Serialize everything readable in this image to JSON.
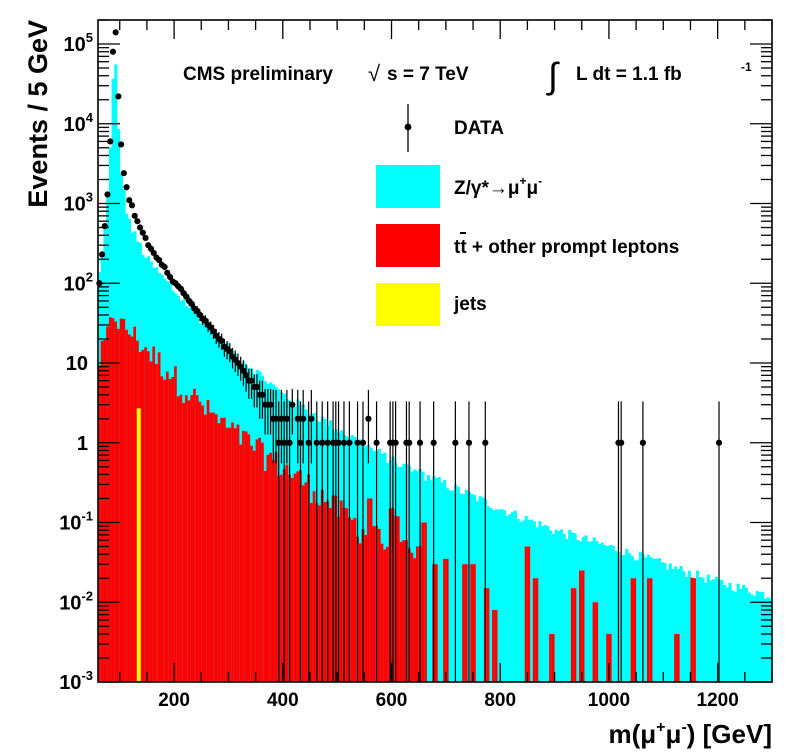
{
  "chart_data": {
    "type": "histogram",
    "title": "CMS preliminary",
    "energy_label": "s = 7 TeV",
    "energy_prefix": "√",
    "lumi_label": "L dt = 1.1 fb",
    "lumi_integral": "∫",
    "lumi_exponent": "-1",
    "xlabel_prefix": "m(μ",
    "xlabel_plus": "+",
    "xlabel_mid": "μ",
    "xlabel_minus": "-",
    "xlabel_suffix": ") [GeV]",
    "ylabel": "Events / 5 GeV",
    "log_y": true,
    "bin_width": 5,
    "xlim": [
      60,
      1300
    ],
    "ylim": [
      0.001,
      200000
    ],
    "x_ticks": [
      200,
      400,
      600,
      800,
      1000,
      1200
    ],
    "x_tick_labels": [
      "200",
      "400",
      "600",
      "800",
      "1000",
      "1200"
    ],
    "y_ticks": [
      {
        "value": 0.001,
        "base": "10",
        "exp": "-3"
      },
      {
        "value": 0.01,
        "base": "10",
        "exp": "-2"
      },
      {
        "value": 0.1,
        "base": "10",
        "exp": "-1"
      },
      {
        "value": 1,
        "base": "1",
        "exp": ""
      },
      {
        "value": 10,
        "base": "10",
        "exp": ""
      },
      {
        "value": 100,
        "base": "10",
        "exp": "2"
      },
      {
        "value": 1000,
        "base": "10",
        "exp": "3"
      },
      {
        "value": 10000,
        "base": "10",
        "exp": "4"
      },
      {
        "value": 100000,
        "base": "10",
        "exp": "5"
      }
    ],
    "legend": [
      {
        "kind": "marker",
        "label": "DATA"
      },
      {
        "kind": "fill",
        "label_parts": [
          "Z/γ*→μ",
          "+",
          "μ",
          "-"
        ],
        "color": "#00ffff"
      },
      {
        "kind": "fill",
        "label_parts": [
          "t",
          "t",
          " + other prompt leptons"
        ],
        "color": "#ff0000"
      },
      {
        "kind": "fill",
        "label": "jets",
        "color": "#ffff00"
      }
    ],
    "series": [
      {
        "name": "Z/gamma*",
        "color": "#00ffff",
        "model": "total_mc",
        "anchors": [
          [
            60,
            100
          ],
          [
            70,
            300
          ],
          [
            80,
            2500
          ],
          [
            85,
            9000
          ],
          [
            90,
            130000
          ],
          [
            95,
            20000
          ],
          [
            100,
            3500
          ],
          [
            110,
            1000
          ],
          [
            120,
            500
          ],
          [
            150,
            200
          ],
          [
            200,
            80
          ],
          [
            250,
            35
          ],
          [
            300,
            15
          ],
          [
            350,
            8
          ],
          [
            400,
            4
          ],
          [
            500,
            1.5
          ],
          [
            600,
            0.6
          ],
          [
            700,
            0.3
          ],
          [
            800,
            0.15
          ],
          [
            900,
            0.08
          ],
          [
            1000,
            0.05
          ],
          [
            1100,
            0.03
          ],
          [
            1200,
            0.018
          ],
          [
            1300,
            0.012
          ]
        ]
      },
      {
        "name": "ttbar + other prompt leptons",
        "color": "#ff0000",
        "model": "ttbar",
        "anchors": [
          [
            60,
            10
          ],
          [
            70,
            15
          ],
          [
            80,
            25
          ],
          [
            90,
            50
          ],
          [
            100,
            30
          ],
          [
            120,
            25
          ],
          [
            150,
            15
          ],
          [
            200,
            7
          ],
          [
            250,
            3
          ],
          [
            300,
            1.5
          ],
          [
            350,
            0.9
          ],
          [
            400,
            0.5
          ],
          [
            450,
            0.3
          ],
          [
            500,
            0.15
          ],
          [
            550,
            0.08
          ],
          [
            600,
            0.05
          ],
          [
            650,
            0.03
          ]
        ],
        "spikes": [
          [
            560,
            0.2
          ],
          [
            570,
            0.09
          ],
          [
            585,
            0.03
          ],
          [
            600,
            0.15
          ],
          [
            610,
            0.12
          ],
          [
            625,
            0.06
          ],
          [
            640,
            0.025
          ],
          [
            650,
            0.05
          ],
          [
            660,
            0.1
          ],
          [
            680,
            0.03
          ],
          [
            700,
            0.035
          ],
          [
            735,
            0.03
          ],
          [
            750,
            0.03
          ],
          [
            775,
            0.015
          ],
          [
            790,
            0.008
          ],
          [
            850,
            0.05
          ],
          [
            865,
            0.02
          ],
          [
            895,
            0.004
          ],
          [
            935,
            0.015
          ],
          [
            950,
            0.025
          ],
          [
            975,
            0.01
          ],
          [
            1000,
            0.004
          ],
          [
            1045,
            0.02
          ],
          [
            1075,
            0.02
          ],
          [
            1125,
            0.004
          ],
          [
            1155,
            0.03
          ]
        ]
      },
      {
        "name": "jets",
        "color": "#ffff00",
        "bars": [
          [
            135,
            2.7
          ]
        ]
      }
    ],
    "data_points": [
      {
        "x": 62.5,
        "y": 100
      },
      {
        "x": 67.5,
        "y": 230
      },
      {
        "x": 72.5,
        "y": 520
      },
      {
        "x": 77.5,
        "y": 1300
      },
      {
        "x": 82.5,
        "y": 6000
      },
      {
        "x": 87.5,
        "y": 80000
      },
      {
        "x": 92.5,
        "y": 140000
      },
      {
        "x": 97.5,
        "y": 22000
      },
      {
        "x": 102.5,
        "y": 5500
      },
      {
        "x": 107.5,
        "y": 2400
      },
      {
        "x": 112.5,
        "y": 1600
      },
      {
        "x": 117.5,
        "y": 1100
      },
      {
        "x": 122.5,
        "y": 950
      },
      {
        "x": 127.5,
        "y": 700
      },
      {
        "x": 132.5,
        "y": 600
      },
      {
        "x": 137.5,
        "y": 500
      },
      {
        "x": 142.5,
        "y": 430
      },
      {
        "x": 147.5,
        "y": 370
      },
      {
        "x": 152.5,
        "y": 300
      },
      {
        "x": 157.5,
        "y": 270
      },
      {
        "x": 162.5,
        "y": 240
      },
      {
        "x": 167.5,
        "y": 210
      },
      {
        "x": 172.5,
        "y": 195
      },
      {
        "x": 177.5,
        "y": 170
      },
      {
        "x": 182.5,
        "y": 160
      },
      {
        "x": 187.5,
        "y": 135
      },
      {
        "x": 192.5,
        "y": 120
      },
      {
        "x": 197.5,
        "y": 105
      },
      {
        "x": 202.5,
        "y": 100
      },
      {
        "x": 207.5,
        "y": 92
      },
      {
        "x": 212.5,
        "y": 85
      },
      {
        "x": 217.5,
        "y": 75
      },
      {
        "x": 222.5,
        "y": 68
      },
      {
        "x": 227.5,
        "y": 60
      },
      {
        "x": 232.5,
        "y": 55
      },
      {
        "x": 237.5,
        "y": 48
      },
      {
        "x": 242.5,
        "y": 45
      },
      {
        "x": 247.5,
        "y": 40
      },
      {
        "x": 252.5,
        "y": 36
      },
      {
        "x": 257.5,
        "y": 34
      },
      {
        "x": 262.5,
        "y": 30
      },
      {
        "x": 267.5,
        "y": 28
      },
      {
        "x": 272.5,
        "y": 25
      },
      {
        "x": 277.5,
        "y": 22
      },
      {
        "x": 282.5,
        "y": 20
      },
      {
        "x": 287.5,
        "y": 19
      },
      {
        "x": 292.5,
        "y": 16
      },
      {
        "x": 297.5,
        "y": 15
      },
      {
        "x": 302.5,
        "y": 14
      },
      {
        "x": 307.5,
        "y": 12
      },
      {
        "x": 312.5,
        "y": 11
      },
      {
        "x": 317.5,
        "y": 10
      },
      {
        "x": 322.5,
        "y": 9
      },
      {
        "x": 327.5,
        "y": 8
      },
      {
        "x": 332.5,
        "y": 7
      },
      {
        "x": 337.5,
        "y": 6
      },
      {
        "x": 342.5,
        "y": 6
      },
      {
        "x": 347.5,
        "y": 5
      },
      {
        "x": 352.5,
        "y": 5
      },
      {
        "x": 357.5,
        "y": 4
      },
      {
        "x": 362.5,
        "y": 4
      },
      {
        "x": 367.5,
        "y": 3
      },
      {
        "x": 372.5,
        "y": 3
      },
      {
        "x": 377.5,
        "y": 3
      },
      {
        "x": 382.5,
        "y": 2
      },
      {
        "x": 387.5,
        "y": 2
      },
      {
        "x": 392.5,
        "y": 1
      },
      {
        "x": 397.5,
        "y": 2
      },
      {
        "x": 402.5,
        "y": 1
      },
      {
        "x": 407.5,
        "y": 2
      },
      {
        "x": 412.5,
        "y": 1
      },
      {
        "x": 417.5,
        "y": 3
      },
      {
        "x": 427.5,
        "y": 2
      },
      {
        "x": 432.5,
        "y": 1
      },
      {
        "x": 437.5,
        "y": 2
      },
      {
        "x": 447.5,
        "y": 1
      },
      {
        "x": 452.5,
        "y": 2
      },
      {
        "x": 462.5,
        "y": 1
      },
      {
        "x": 472.5,
        "y": 1
      },
      {
        "x": 482.5,
        "y": 1
      },
      {
        "x": 492.5,
        "y": 1
      },
      {
        "x": 497.5,
        "y": 1
      },
      {
        "x": 502.5,
        "y": 1
      },
      {
        "x": 512.5,
        "y": 1
      },
      {
        "x": 522.5,
        "y": 1
      },
      {
        "x": 537.5,
        "y": 1
      },
      {
        "x": 547.5,
        "y": 1
      },
      {
        "x": 557.5,
        "y": 2
      },
      {
        "x": 572.5,
        "y": 1
      },
      {
        "x": 597.5,
        "y": 1
      },
      {
        "x": 602.5,
        "y": 1
      },
      {
        "x": 607.5,
        "y": 1
      },
      {
        "x": 627.5,
        "y": 1
      },
      {
        "x": 632.5,
        "y": 1
      },
      {
        "x": 652.5,
        "y": 1
      },
      {
        "x": 677.5,
        "y": 1
      },
      {
        "x": 717.5,
        "y": 1
      },
      {
        "x": 742.5,
        "y": 1
      },
      {
        "x": 772.5,
        "y": 1
      },
      {
        "x": 1017.5,
        "y": 1
      },
      {
        "x": 1022.5,
        "y": 1
      },
      {
        "x": 1062.5,
        "y": 1
      },
      {
        "x": 1202.5,
        "y": 1
      }
    ]
  }
}
